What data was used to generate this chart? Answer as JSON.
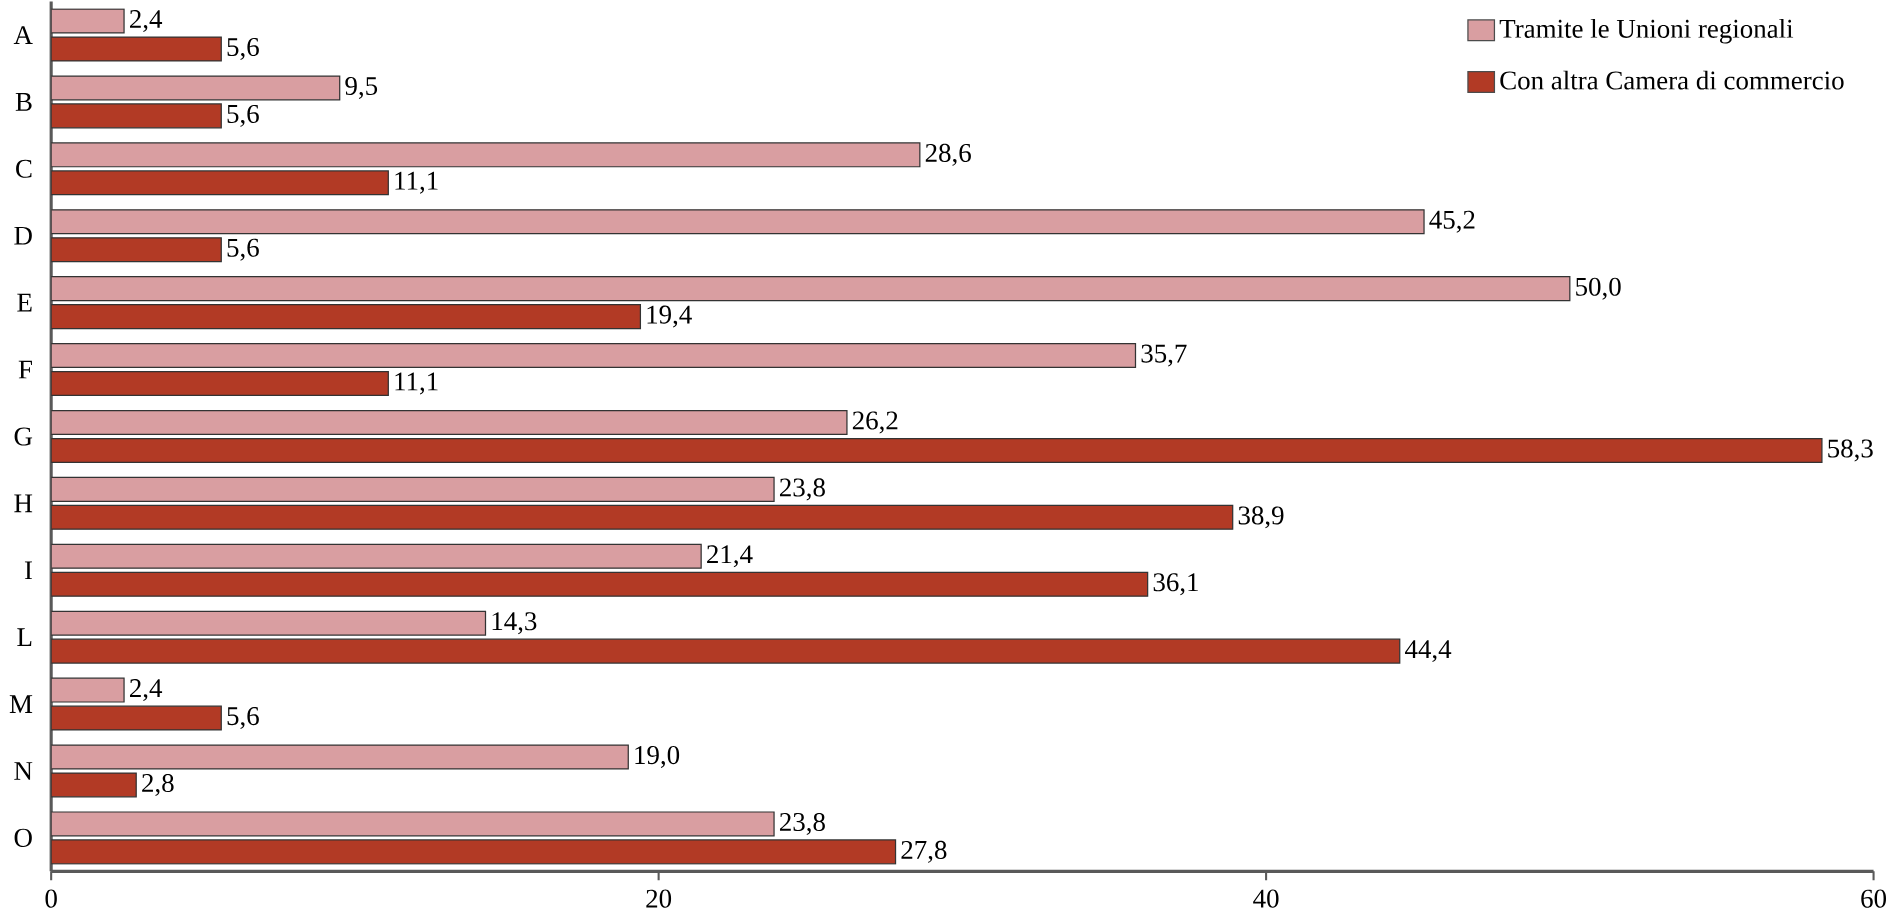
{
  "chart_data": {
    "type": "bar",
    "orientation": "horizontal",
    "categories": [
      "A",
      "B",
      "C",
      "D",
      "E",
      "F",
      "G",
      "H",
      "I",
      "L",
      "M",
      "N",
      "O"
    ],
    "series": [
      {
        "name": "Tramite le Unioni regionali",
        "color": "#d99ea1",
        "values": [
          2.4,
          9.5,
          28.6,
          45.2,
          50.0,
          35.7,
          26.2,
          23.8,
          21.4,
          14.3,
          2.4,
          19.0,
          23.8
        ],
        "value_labels": [
          "2,4",
          "9,5",
          "28,6",
          "45,2",
          "50,0",
          "35,7",
          "26,2",
          "23,8",
          "21,4",
          "14,3",
          "2,4",
          "19,0",
          "23,8"
        ]
      },
      {
        "name": "Con altra Camera di commercio",
        "color": "#b23a25",
        "values": [
          5.6,
          5.6,
          11.1,
          5.6,
          19.4,
          11.1,
          58.3,
          38.9,
          36.1,
          44.4,
          5.6,
          2.8,
          27.8
        ],
        "value_labels": [
          "5,6",
          "5,6",
          "11,1",
          "5,6",
          "19,4",
          "11,1",
          "58,3",
          "38,9",
          "36,1",
          "44,4",
          "5,6",
          "2,8",
          "27,8"
        ]
      }
    ],
    "xlim": [
      0,
      60
    ],
    "xticks": [
      0,
      20,
      40,
      60
    ],
    "grid": false,
    "legend": "top right"
  }
}
